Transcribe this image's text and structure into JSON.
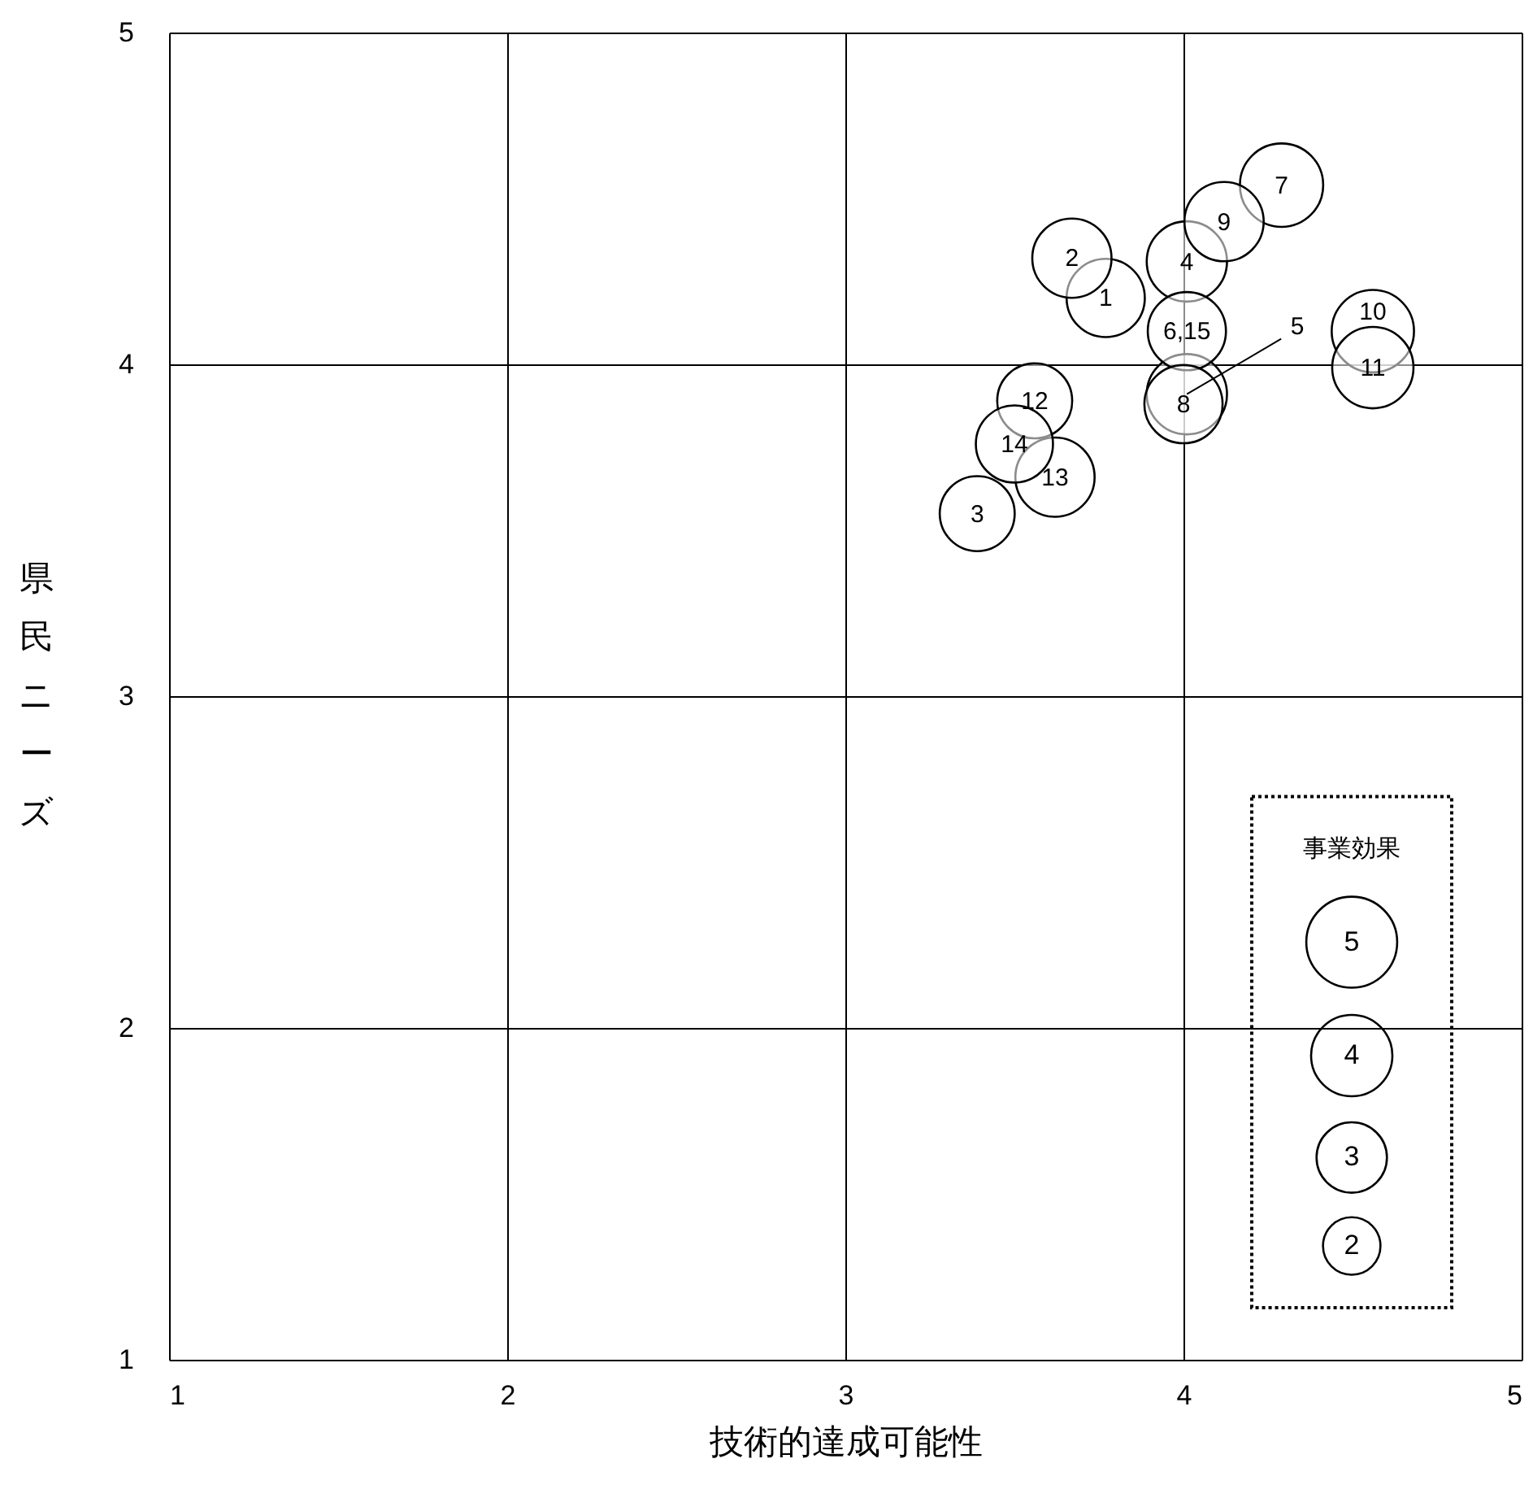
{
  "chart_data": {
    "type": "bubble",
    "xlabel": "技術的達成可能性",
    "ylabel": "県民ニーズ",
    "legend_title": "事業効果",
    "x": [
      3.77,
      3.67,
      3.39,
      4.01,
      4.01,
      4.01,
      4.29,
      4.0,
      4.12,
      4.56,
      4.56,
      3.56,
      3.62,
      3.5
    ],
    "values": [
      4.2,
      4.32,
      3.55,
      4.31,
      3.91,
      4.1,
      4.54,
      3.88,
      4.43,
      4.1,
      3.99,
      3.89,
      3.66,
      3.76
    ],
    "sizes": [
      3.7,
      3.8,
      3.4,
      3.9,
      3.9,
      3.7,
      4.2,
      3.7,
      3.8,
      4.1,
      4.0,
      3.4,
      3.8,
      3.6
    ],
    "annotations": [
      {
        "text": "1",
        "x": 3.77,
        "y": 4.2
      },
      {
        "text": "2",
        "x": 3.67,
        "y": 4.32
      },
      {
        "text": "3",
        "x": 3.39,
        "y": 3.55
      },
      {
        "text": "4",
        "x": 4.01,
        "y": 4.31
      },
      {
        "text": "5",
        "x": 4.01,
        "y": 3.91
      },
      {
        "text": "6,15",
        "x": 4.01,
        "y": 4.1
      },
      {
        "text": "7",
        "x": 4.29,
        "y": 4.54
      },
      {
        "text": "8",
        "x": 4.0,
        "y": 3.88
      },
      {
        "text": "9",
        "x": 4.12,
        "y": 4.43
      },
      {
        "text": "10",
        "x": 4.56,
        "y": 4.1
      },
      {
        "text": "11",
        "x": 4.56,
        "y": 3.99
      },
      {
        "text": "12",
        "x": 3.56,
        "y": 3.89
      },
      {
        "text": "13",
        "x": 3.62,
        "y": 3.66
      },
      {
        "text": "14",
        "x": 3.5,
        "y": 3.76
      }
    ],
    "size_legend": [
      5,
      4,
      3,
      2
    ],
    "color": "#ffffff",
    "xlim": [
      1,
      5
    ],
    "ylim": [
      1,
      5
    ],
    "xticks": [
      1,
      2,
      3,
      4,
      5
    ],
    "yticks": [
      1,
      2,
      3,
      4,
      5
    ],
    "grid": true
  }
}
